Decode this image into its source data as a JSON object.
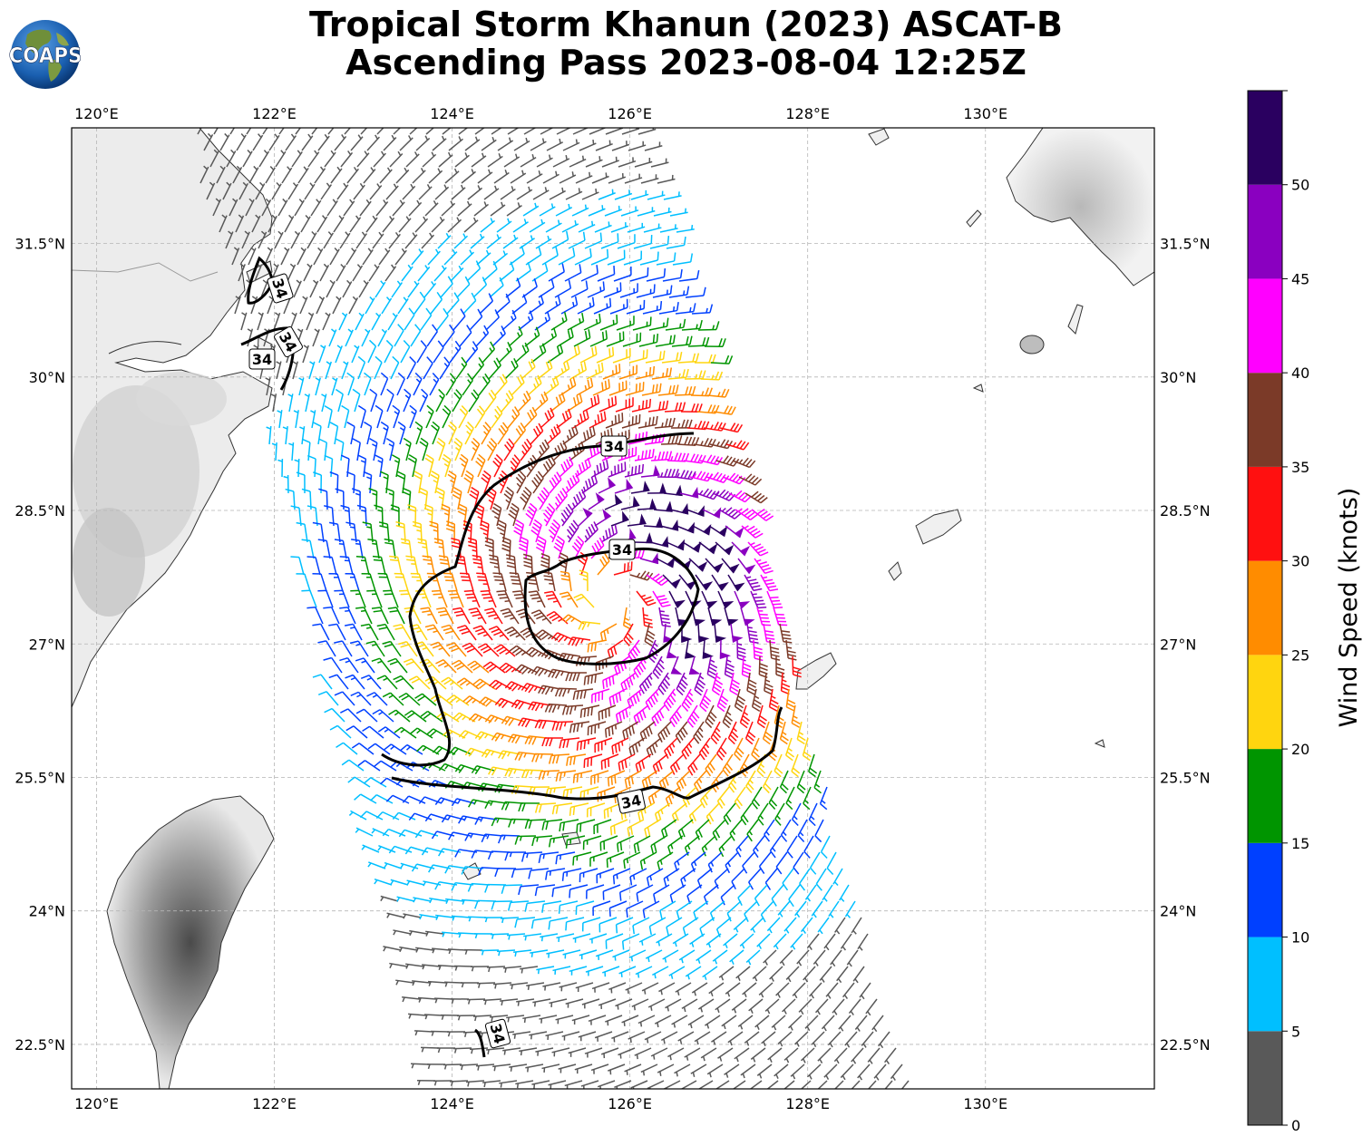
{
  "header": {
    "title_line1": "Tropical Storm Khanun (2023) ASCAT-B",
    "title_line2": "Ascending Pass 2023-08-04 12:25Z",
    "logo_text": "COAPS"
  },
  "map": {
    "lon_range": [
      119.72,
      131.9
    ],
    "lat_range": [
      22.0,
      32.8
    ],
    "lon_ticks": [
      "120°E",
      "122°E",
      "124°E",
      "126°E",
      "128°E",
      "130°E"
    ],
    "lat_ticks": [
      "22.5°N",
      "24°N",
      "25.5°N",
      "27°N",
      "28.5°N",
      "30°N",
      "31.5°N"
    ],
    "grid": true,
    "storm_center": {
      "lon": 125.8,
      "lat": 27.5
    },
    "contour_label": "34",
    "contour_label_count": 7
  },
  "colorbar": {
    "label": "Wind Speed (knots)",
    "ticks": [
      "0",
      "5",
      "10",
      "15",
      "20",
      "25",
      "30",
      "35",
      "40",
      "45",
      "50"
    ],
    "bins": [
      {
        "min": 0,
        "max": 5,
        "color": "#595959"
      },
      {
        "min": 5,
        "max": 10,
        "color": "#00bfff"
      },
      {
        "min": 10,
        "max": 15,
        "color": "#0040ff"
      },
      {
        "min": 15,
        "max": 20,
        "color": "#009500"
      },
      {
        "min": 20,
        "max": 25,
        "color": "#ffd50f"
      },
      {
        "min": 25,
        "max": 30,
        "color": "#ff8c00"
      },
      {
        "min": 30,
        "max": 35,
        "color": "#ff1010"
      },
      {
        "min": 35,
        "max": 40,
        "color": "#7b3a28"
      },
      {
        "min": 40,
        "max": 45,
        "color": "#ff00ff"
      },
      {
        "min": 45,
        "max": 50,
        "color": "#8a00c0"
      },
      {
        "min": 50,
        "max": 55,
        "color": "#2a0060"
      }
    ]
  }
}
